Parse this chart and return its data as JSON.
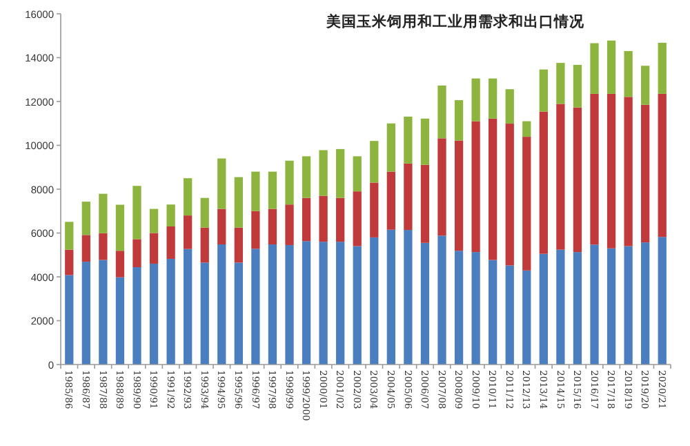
{
  "chart_data": {
    "type": "bar",
    "stacked": true,
    "title": "美国玉米饲用和工业用需求和出口情况",
    "categories": [
      "1985/86",
      "1986/87",
      "1987/88",
      "1988/89",
      "1989/90",
      "1990/91",
      "1991/92",
      "1992/93",
      "1993/94",
      "1994/95",
      "1995/96",
      "1996/97",
      "1997/98",
      "1998/99",
      "1999/2000",
      "2000/01",
      "2001/02",
      "2002/03",
      "2003/04",
      "2004/05",
      "2005/06",
      "2006/07",
      "2007/08",
      "2008/09",
      "2009/10",
      "2010/11",
      "2011/12",
      "2012/13",
      "2013/14",
      "2014/15",
      "2015/16",
      "2016/17",
      "2017/18",
      "2018/19",
      "2019/20",
      "2020/21"
    ],
    "series": [
      {
        "color": "#4a7ebf",
        "values": [
          4080,
          4690,
          4770,
          3980,
          4440,
          4600,
          4820,
          5270,
          4650,
          5480,
          4650,
          5280,
          5480,
          5450,
          5630,
          5600,
          5600,
          5400,
          5800,
          6150,
          6140,
          5550,
          5880,
          5190,
          5130,
          4770,
          4520,
          4290,
          5050,
          5240,
          5130,
          5470,
          5300,
          5400,
          5570,
          5820
        ]
      },
      {
        "color": "#c0393b",
        "values": [
          1160,
          1220,
          1220,
          1210,
          1280,
          1400,
          1480,
          1530,
          1600,
          1620,
          1600,
          1720,
          1620,
          1850,
          1970,
          2100,
          2000,
          2500,
          2500,
          2650,
          3030,
          3560,
          4440,
          5030,
          5970,
          6450,
          6470,
          6100,
          6490,
          6650,
          6600,
          6880,
          7050,
          6810,
          6280,
          6530
        ]
      },
      {
        "color": "#8db43e",
        "values": [
          1270,
          1520,
          1800,
          2100,
          2430,
          1100,
          1000,
          1700,
          1350,
          2300,
          2300,
          1800,
          1700,
          2000,
          1900,
          2080,
          2230,
          1600,
          1900,
          2200,
          2140,
          2110,
          2410,
          1840,
          1950,
          1830,
          1570,
          710,
          1920,
          1870,
          1940,
          2310,
          2430,
          2090,
          1780,
          2330
        ]
      }
    ],
    "ylim": [
      0,
      16000
    ],
    "yticks": [
      0,
      2000,
      4000,
      6000,
      8000,
      10000,
      12000,
      14000,
      16000
    ]
  }
}
